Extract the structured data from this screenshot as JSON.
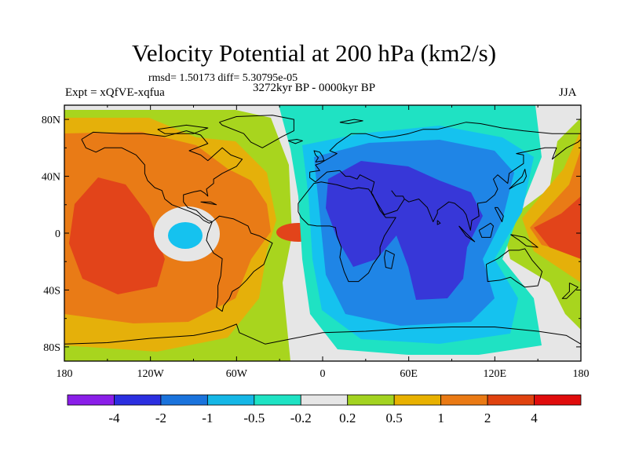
{
  "title": "Velocity Potential at 200 hPa (km2/s)",
  "stats": "rmsd= 1.50173 diff= 5.30795e-05",
  "experiment": "Expt = xQfVE-xqfua",
  "period": "3272kyr BP - 0000kyr BP",
  "season": "JJA",
  "map": {
    "projection": "cylindrical equidistant",
    "lon_ticks": [
      "180",
      "120W",
      "60W",
      "0",
      "60E",
      "120E",
      "180"
    ],
    "lat_ticks": [
      "80N",
      "40N",
      "0",
      "40S",
      "80S"
    ]
  },
  "colorbar": {
    "labels": [
      "-4",
      "-2",
      "-1",
      "-0.5",
      "-0.2",
      "0.2",
      "0.5",
      "1",
      "2",
      "4"
    ],
    "colors": [
      "#8a1ee8",
      "#2b2fe0",
      "#1a73dc",
      "#15b7e6",
      "#1ee3c4",
      "#e6e6e6",
      "#a3d320",
      "#e8b100",
      "#ea7a14",
      "#e0420f",
      "#e00c0c"
    ]
  },
  "palette": {
    "deep_blue": "#3737d8",
    "blue": "#1f85e6",
    "light_blue": "#15c2ef",
    "cyan": "#1fe2c3",
    "neutral": "#e6e6e6",
    "lime": "#a8d51e",
    "gold": "#e5b00a",
    "orange": "#e97b16",
    "red_orange": "#e2441a",
    "coastline": "#000000"
  }
}
